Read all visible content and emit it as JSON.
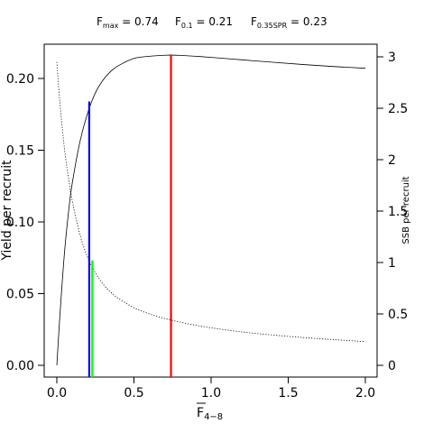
{
  "chart_data": {
    "type": "line",
    "title_parts": [
      {
        "main": "F",
        "sub": "max",
        "rest": " = 0.74"
      },
      {
        "main": "F",
        "sub": "0.1",
        "rest": " = 0.21"
      },
      {
        "main": "F",
        "sub": "0.35SPR",
        "rest": " = 0.23"
      }
    ],
    "xlabel_main": "F",
    "xlabel_sub": "4−8",
    "ylabel": "Yield per recruit",
    "y2label": "SSB per recruit",
    "xlim": [
      0,
      2.0
    ],
    "ylim": [
      0,
      0.22
    ],
    "y2lim": [
      0,
      3.0
    ],
    "x_ticks": [
      0,
      0.5,
      1.0,
      1.5,
      2.0
    ],
    "x_tick_labels": [
      "0.0",
      "0.5",
      "1.0",
      "1.5",
      "2.0"
    ],
    "y_ticks": [
      0,
      0.05,
      0.1,
      0.15,
      0.2
    ],
    "y_tick_labels": [
      "0.00",
      "0.05",
      "0.10",
      "0.15",
      "0.20"
    ],
    "y2_ticks": [
      0,
      0.5,
      1.0,
      1.5,
      2.0,
      2.5,
      3.0
    ],
    "y2_tick_labels": [
      "0",
      "0.5",
      "1",
      "1.5",
      "2",
      "2.5",
      "3"
    ],
    "series": [
      {
        "style": "solid",
        "axis": "left",
        "x": [
          0,
          0.02,
          0.05,
          0.08,
          0.1,
          0.15,
          0.2,
          0.25,
          0.3,
          0.35,
          0.4,
          0.5,
          0.6,
          0.7,
          0.74,
          0.8,
          0.9,
          1.0,
          1.2,
          1.4,
          1.6,
          1.8,
          2.0
        ],
        "y": [
          0,
          0.035,
          0.079,
          0.111,
          0.127,
          0.156,
          0.176,
          0.19,
          0.199,
          0.205,
          0.209,
          0.214,
          0.2155,
          0.2162,
          0.2163,
          0.2161,
          0.2155,
          0.2147,
          0.213,
          0.2113,
          0.2097,
          0.2083,
          0.2071
        ]
      },
      {
        "style": "dotted",
        "axis": "right",
        "x": [
          0,
          0.02,
          0.05,
          0.08,
          0.1,
          0.15,
          0.2,
          0.25,
          0.3,
          0.35,
          0.4,
          0.5,
          0.6,
          0.7,
          0.8,
          0.9,
          1.0,
          1.2,
          1.4,
          1.6,
          1.8,
          2.0
        ],
        "y": [
          2.95,
          2.55,
          2.1,
          1.78,
          1.6,
          1.27,
          1.05,
          0.9,
          0.79,
          0.71,
          0.65,
          0.56,
          0.5,
          0.455,
          0.42,
          0.39,
          0.365,
          0.325,
          0.295,
          0.27,
          0.25,
          0.23
        ]
      }
    ],
    "reference_lines": [
      {
        "x": 0.21,
        "y": 0.184,
        "axis": "left",
        "color": "#0000ff"
      },
      {
        "x": 0.23,
        "y": 1.02,
        "axis": "right",
        "color": "#00ff00"
      },
      {
        "x": 0.74,
        "y": 0.2163,
        "axis": "left",
        "color": "#ff0000"
      }
    ],
    "grid": false,
    "legend": "none"
  }
}
